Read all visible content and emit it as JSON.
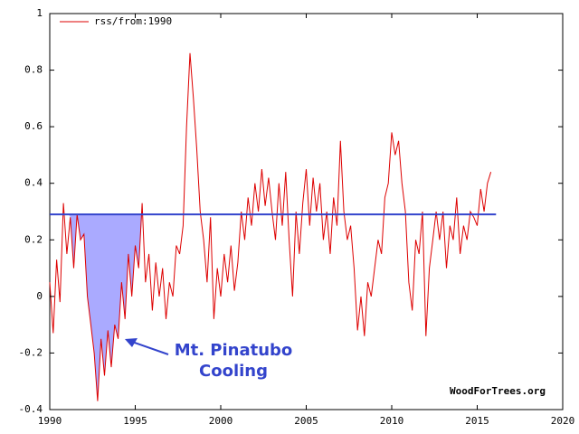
{
  "chart_data": {
    "type": "line",
    "x": [
      1990,
      1990.2,
      1990.4,
      1990.6,
      1990.8,
      1991,
      1991.2,
      1991.4,
      1991.6,
      1991.8,
      1992,
      1992.2,
      1992.4,
      1992.6,
      1992.8,
      1993,
      1993.2,
      1993.4,
      1993.6,
      1993.8,
      1994,
      1994.2,
      1994.4,
      1994.6,
      1994.8,
      1995,
      1995.2,
      1995.4,
      1995.6,
      1995.8,
      1996,
      1996.2,
      1996.4,
      1996.6,
      1996.8,
      1997,
      1997.2,
      1997.4,
      1997.6,
      1997.8,
      1998,
      1998.2,
      1998.4,
      1998.6,
      1998.8,
      1999,
      1999.2,
      1999.4,
      1999.6,
      1999.8,
      2000,
      2000.2,
      2000.4,
      2000.6,
      2000.8,
      2001,
      2001.2,
      2001.4,
      2001.6,
      2001.8,
      2002,
      2002.2,
      2002.4,
      2002.6,
      2002.8,
      2003,
      2003.2,
      2003.4,
      2003.6,
      2003.8,
      2004,
      2004.2,
      2004.4,
      2004.6,
      2004.8,
      2005,
      2005.2,
      2005.4,
      2005.6,
      2005.8,
      2006,
      2006.2,
      2006.4,
      2006.6,
      2006.8,
      2007,
      2007.2,
      2007.4,
      2007.6,
      2007.8,
      2008,
      2008.2,
      2008.4,
      2008.6,
      2008.8,
      2009,
      2009.2,
      2009.4,
      2009.6,
      2009.8,
      2010,
      2010.2,
      2010.4,
      2010.6,
      2010.8,
      2011,
      2011.2,
      2011.4,
      2011.6,
      2011.8,
      2012,
      2012.2,
      2012.4,
      2012.6,
      2012.8,
      2013,
      2013.2,
      2013.4,
      2013.6,
      2013.8,
      2014,
      2014.2,
      2014.4,
      2014.6,
      2014.8,
      2015,
      2015.2,
      2015.4,
      2015.6,
      2015.8
    ],
    "series": [
      {
        "name": "rss/from:1990",
        "color": "#dd0000",
        "values": [
          0.05,
          -0.13,
          0.13,
          -0.02,
          0.33,
          0.15,
          0.28,
          0.1,
          0.29,
          0.2,
          0.22,
          0.0,
          -0.1,
          -0.2,
          -0.37,
          -0.15,
          -0.28,
          -0.12,
          -0.25,
          -0.1,
          -0.15,
          0.05,
          -0.08,
          0.15,
          0.0,
          0.18,
          0.1,
          0.33,
          0.05,
          0.15,
          -0.05,
          0.12,
          0.0,
          0.1,
          -0.08,
          0.05,
          0.0,
          0.18,
          0.15,
          0.25,
          0.6,
          0.86,
          0.7,
          0.52,
          0.3,
          0.2,
          0.05,
          0.28,
          -0.08,
          0.1,
          0.0,
          0.15,
          0.05,
          0.18,
          0.02,
          0.12,
          0.3,
          0.2,
          0.35,
          0.25,
          0.4,
          0.3,
          0.45,
          0.32,
          0.42,
          0.3,
          0.2,
          0.4,
          0.25,
          0.44,
          0.2,
          0.0,
          0.3,
          0.15,
          0.33,
          0.45,
          0.25,
          0.42,
          0.3,
          0.4,
          0.2,
          0.3,
          0.15,
          0.35,
          0.25,
          0.55,
          0.3,
          0.2,
          0.25,
          0.1,
          -0.12,
          0.0,
          -0.14,
          0.05,
          0.0,
          0.1,
          0.2,
          0.15,
          0.35,
          0.4,
          0.58,
          0.5,
          0.55,
          0.4,
          0.3,
          0.05,
          -0.05,
          0.2,
          0.15,
          0.3,
          -0.14,
          0.1,
          0.2,
          0.3,
          0.2,
          0.3,
          0.1,
          0.25,
          0.2,
          0.35,
          0.15,
          0.25,
          0.2,
          0.3,
          0.28,
          0.25,
          0.38,
          0.3,
          0.4,
          0.44
        ]
      }
    ],
    "reference_line": {
      "value": 0.29,
      "from": 1990,
      "to": 2016.1,
      "color": "#3344cc"
    },
    "shade": {
      "from": 1991.1,
      "to": 1995.5,
      "color": "#aaaaff"
    },
    "annotations": [
      "Mt. Pinatubo",
      "Cooling"
    ],
    "source": "WoodForTrees.org",
    "xlim": [
      1990,
      2020
    ],
    "xticks": [
      1990,
      1995,
      2000,
      2005,
      2010,
      2015,
      2020
    ],
    "ylim": [
      -0.4,
      1
    ],
    "yticks": [
      -0.4,
      -0.2,
      0,
      0.2,
      0.4,
      0.6,
      0.8,
      1
    ],
    "legend": "upper left"
  }
}
